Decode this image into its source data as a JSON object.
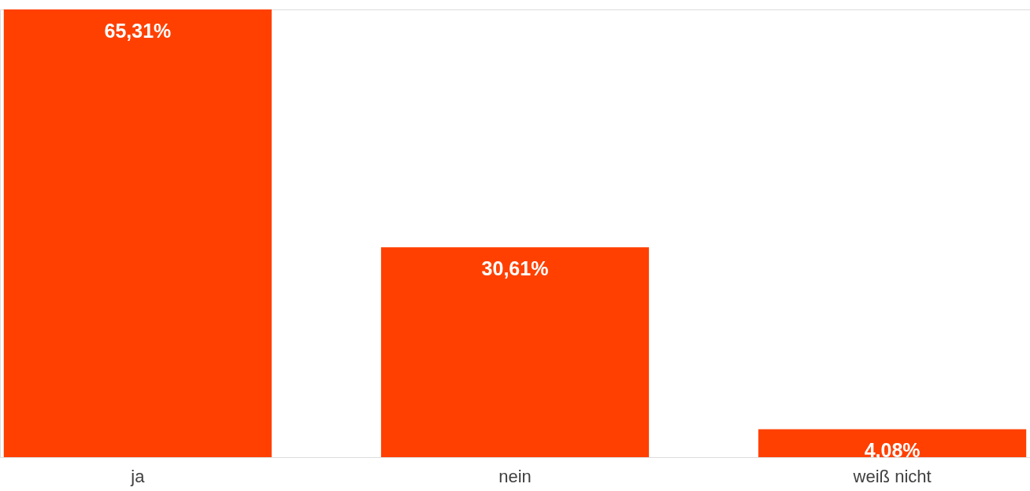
{
  "chart_data": {
    "type": "bar",
    "categories": [
      "ja",
      "nein",
      "weiß nicht"
    ],
    "values": [
      65.31,
      30.61,
      4.08
    ],
    "value_labels": [
      "65,31%",
      "30,61%",
      "4,08%"
    ],
    "color": "#ff4000"
  }
}
